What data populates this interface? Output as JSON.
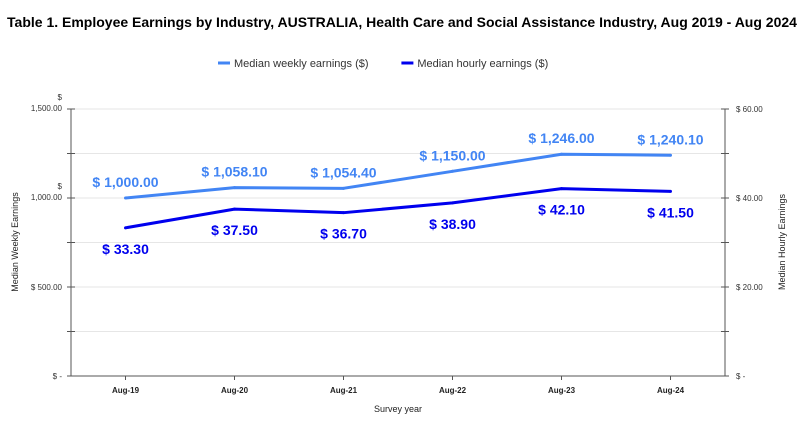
{
  "chart_data": {
    "type": "line",
    "title": "Table 1. Employee Earnings by Industry, AUSTRALIA, Health Care and Social Assistance Industry, Aug 2019 - Aug 2024",
    "xlabel": "Survey year",
    "ylabel": "Median Weekly Earnings",
    "y2label": "Median Hourly Earnings",
    "categories": [
      "Aug-19",
      "Aug-20",
      "Aug-21",
      "Aug-22",
      "Aug-23",
      "Aug-24"
    ],
    "ylim": [
      0,
      1500
    ],
    "y2lim": [
      0,
      60
    ],
    "y_ticks": [
      {
        "value": 0,
        "label": "$ -"
      },
      {
        "value": 500,
        "label": "$ 500.00"
      },
      {
        "value": 1000,
        "label": "$ 1,000.00"
      },
      {
        "value": 1500,
        "label": "$ 1,500.00"
      }
    ],
    "y2_ticks": [
      {
        "value": 0,
        "label": "$ -"
      },
      {
        "value": 20,
        "label": "$ 20.00"
      },
      {
        "value": 40,
        "label": "$ 40.00"
      },
      {
        "value": 60,
        "label": "$ 60.00"
      }
    ],
    "grid": true,
    "legend": "top",
    "series": [
      {
        "name": "Median weekly earnings ($)",
        "axis": "left",
        "color": "#4285f4",
        "values": [
          1000.0,
          1058.1,
          1054.4,
          1150.0,
          1246.0,
          1240.1
        ],
        "labels": [
          "$ 1,000.00",
          "$ 1,058.10",
          "$ 1,054.40",
          "$ 1,150.00",
          "$ 1,246.00",
          "$ 1,240.10"
        ]
      },
      {
        "name": "Median hourly earnings ($)",
        "axis": "right",
        "color": "#0000ee",
        "values": [
          33.3,
          37.5,
          36.7,
          38.9,
          42.1,
          41.5
        ],
        "labels": [
          "$ 33.30",
          "$ 37.50",
          "$ 36.70",
          "$ 38.90",
          "$ 42.10",
          "$ 41.50"
        ]
      }
    ]
  }
}
